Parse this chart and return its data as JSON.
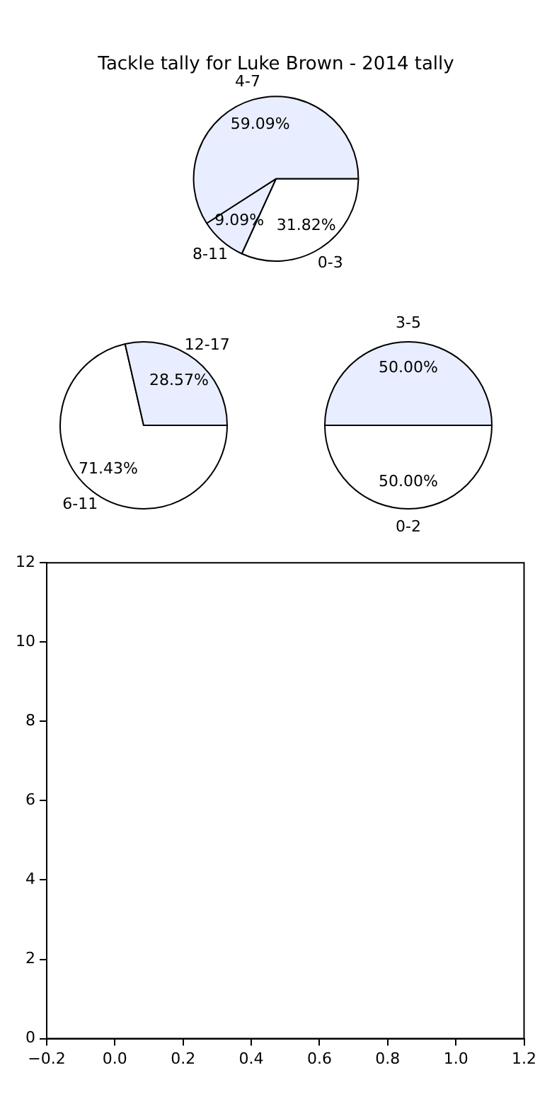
{
  "chart_data": [
    {
      "type": "pie",
      "title": "Tackle tally for Luke Brown - 2014 tally",
      "categories": [
        "0-3",
        "8-11",
        "4-7"
      ],
      "values": [
        31.82,
        9.09,
        59.09
      ],
      "value_labels": [
        "31.82%",
        "9.09%",
        "59.09%"
      ],
      "colors": [
        "#ffffff",
        "#e8eeff",
        "#e8eeff"
      ]
    },
    {
      "type": "pie",
      "categories": [
        "6-11",
        "12-17"
      ],
      "values": [
        71.43,
        28.57
      ],
      "value_labels": [
        "71.43%",
        "28.57%"
      ],
      "colors": [
        "#ffffff",
        "#e8eeff"
      ]
    },
    {
      "type": "pie",
      "categories": [
        "0-2",
        "3-5"
      ],
      "values": [
        50.0,
        50.0
      ],
      "value_labels": [
        "50.00%",
        "50.00%"
      ],
      "colors": [
        "#ffffff",
        "#e8eeff"
      ]
    },
    {
      "type": "scatter",
      "xlim": [
        -0.2,
        1.2
      ],
      "xticks": [
        {
          "value": -0.2,
          "label": "−0.2"
        },
        {
          "value": 0,
          "label": "0.0"
        },
        {
          "value": 0.2,
          "label": "0.2"
        },
        {
          "value": 0.4,
          "label": "0.4"
        },
        {
          "value": 0.6,
          "label": "0.6"
        },
        {
          "value": 0.8,
          "label": "0.8"
        },
        {
          "value": 1.0,
          "label": "1.0"
        },
        {
          "value": 1.2,
          "label": "1.2"
        }
      ],
      "ylim": [
        0,
        12
      ],
      "yticks": [
        0,
        2,
        4,
        6,
        8,
        10,
        12
      ],
      "grid": false
    }
  ]
}
